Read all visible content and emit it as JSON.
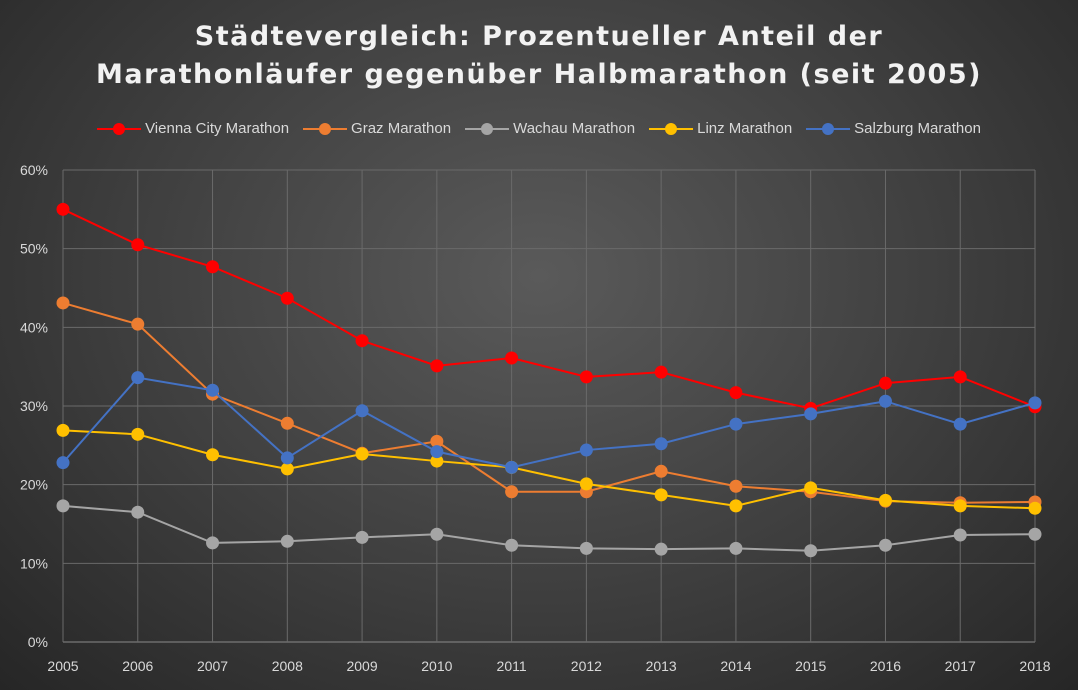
{
  "chart_data": {
    "type": "line",
    "title": "Städtevergleich: Prozentueller Anteil der Marathonläufer gegenüber Halbmarathon (seit 2005)",
    "title_lines": [
      "Städtevergleich: Prozentueller Anteil der",
      "Marathonläufer gegenüber Halbmarathon (seit 2005)"
    ],
    "xlabel": "",
    "ylabel": "",
    "x": [
      "2005",
      "2006",
      "2007",
      "2008",
      "2009",
      "2010",
      "2011",
      "2012",
      "2013",
      "2014",
      "2015",
      "2016",
      "2017",
      "2018"
    ],
    "ylim": [
      0,
      60
    ],
    "yticks": [
      "0%",
      "10%",
      "20%",
      "30%",
      "40%",
      "50%",
      "60%"
    ],
    "grid": true,
    "legend": "top",
    "series": [
      {
        "name": "Vienna City Marathon",
        "color": "#ff0000",
        "values": [
          55.0,
          50.5,
          47.7,
          43.7,
          38.3,
          35.1,
          36.1,
          33.7,
          34.3,
          31.7,
          29.7,
          32.9,
          33.7,
          29.9
        ]
      },
      {
        "name": "Graz Marathon",
        "color": "#ed7d31",
        "values": [
          43.1,
          40.4,
          31.5,
          27.8,
          24.0,
          25.5,
          19.1,
          19.1,
          21.7,
          19.8,
          19.1,
          17.9,
          17.7,
          17.8
        ]
      },
      {
        "name": "Wachau Marathon",
        "color": "#a5a5a5",
        "values": [
          17.3,
          16.5,
          12.6,
          12.8,
          13.3,
          13.7,
          12.3,
          11.9,
          11.8,
          11.9,
          11.6,
          12.3,
          13.6,
          13.7
        ]
      },
      {
        "name": "Linz Marathon",
        "color": "#ffc000",
        "values": [
          26.9,
          26.4,
          23.8,
          22.0,
          23.9,
          23.0,
          22.2,
          20.1,
          18.7,
          17.3,
          19.6,
          18.0,
          17.3,
          17.0
        ]
      },
      {
        "name": "Salzburg Marathon",
        "color": "#4472c4",
        "values": [
          22.8,
          33.6,
          32.0,
          23.4,
          29.4,
          24.2,
          22.2,
          24.4,
          25.2,
          27.7,
          29.0,
          30.6,
          27.7,
          30.4
        ]
      }
    ]
  }
}
